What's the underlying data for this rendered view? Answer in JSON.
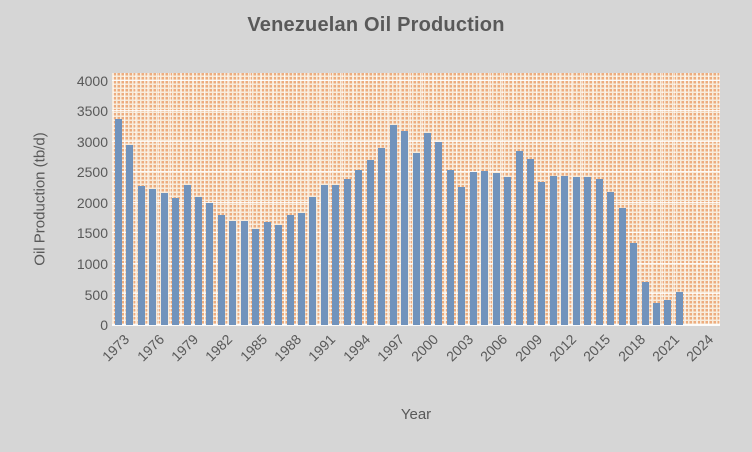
{
  "title": "Venezuelan Oil Production",
  "y_axis": {
    "title": "Oil Production (tb/d)",
    "ticks": [
      0,
      500,
      1000,
      1500,
      2000,
      2500,
      3000,
      3500,
      4000
    ],
    "max": 4000
  },
  "x_axis": {
    "title": "Year",
    "tick_labels": [
      "1973",
      "1976",
      "1979",
      "1982",
      "1985",
      "1988",
      "1991",
      "1994",
      "1997",
      "2000",
      "2003",
      "2006",
      "2009",
      "2012",
      "2015",
      "2018",
      "2021",
      "2024"
    ]
  },
  "colors": {
    "background": "#d6d6d6",
    "bar": "#7193bc",
    "plot_pattern_orange": "#edac7e",
    "plot_pattern_cream": "#f8ecdc",
    "text": "#595959",
    "gridline": "#ffffff"
  },
  "chart_data": {
    "type": "bar",
    "title": "Venezuelan Oil Production",
    "xlabel": "Year",
    "ylabel": "Oil Production (tb/d)",
    "ylim": [
      0,
      4000
    ],
    "grid": "white gridlines over orange dotted pattern fill",
    "legend": "none",
    "x": [
      1973,
      1974,
      1975,
      1976,
      1977,
      1978,
      1979,
      1980,
      1981,
      1982,
      1983,
      1984,
      1985,
      1986,
      1987,
      1988,
      1989,
      1990,
      1991,
      1992,
      1993,
      1994,
      1995,
      1996,
      1997,
      1998,
      1999,
      2000,
      2001,
      2002,
      2003,
      2004,
      2005,
      2006,
      2007,
      2008,
      2009,
      2010,
      2011,
      2012,
      2013,
      2014,
      2015,
      2016,
      2017,
      2018,
      2019,
      2020,
      2021,
      2022
    ],
    "values": [
      3370,
      2950,
      2280,
      2230,
      2170,
      2075,
      2300,
      2100,
      2005,
      1805,
      1700,
      1710,
      1570,
      1680,
      1640,
      1805,
      1830,
      2090,
      2300,
      2300,
      2390,
      2540,
      2700,
      2905,
      3275,
      3170,
      2810,
      3145,
      2990,
      2540,
      2260,
      2500,
      2530,
      2490,
      2430,
      2850,
      2720,
      2350,
      2435,
      2440,
      2430,
      2430,
      2390,
      2175,
      1910,
      1350,
      710,
      360,
      410,
      545
    ],
    "note": "axis categories extend to 2024 but bars end at 2022"
  }
}
